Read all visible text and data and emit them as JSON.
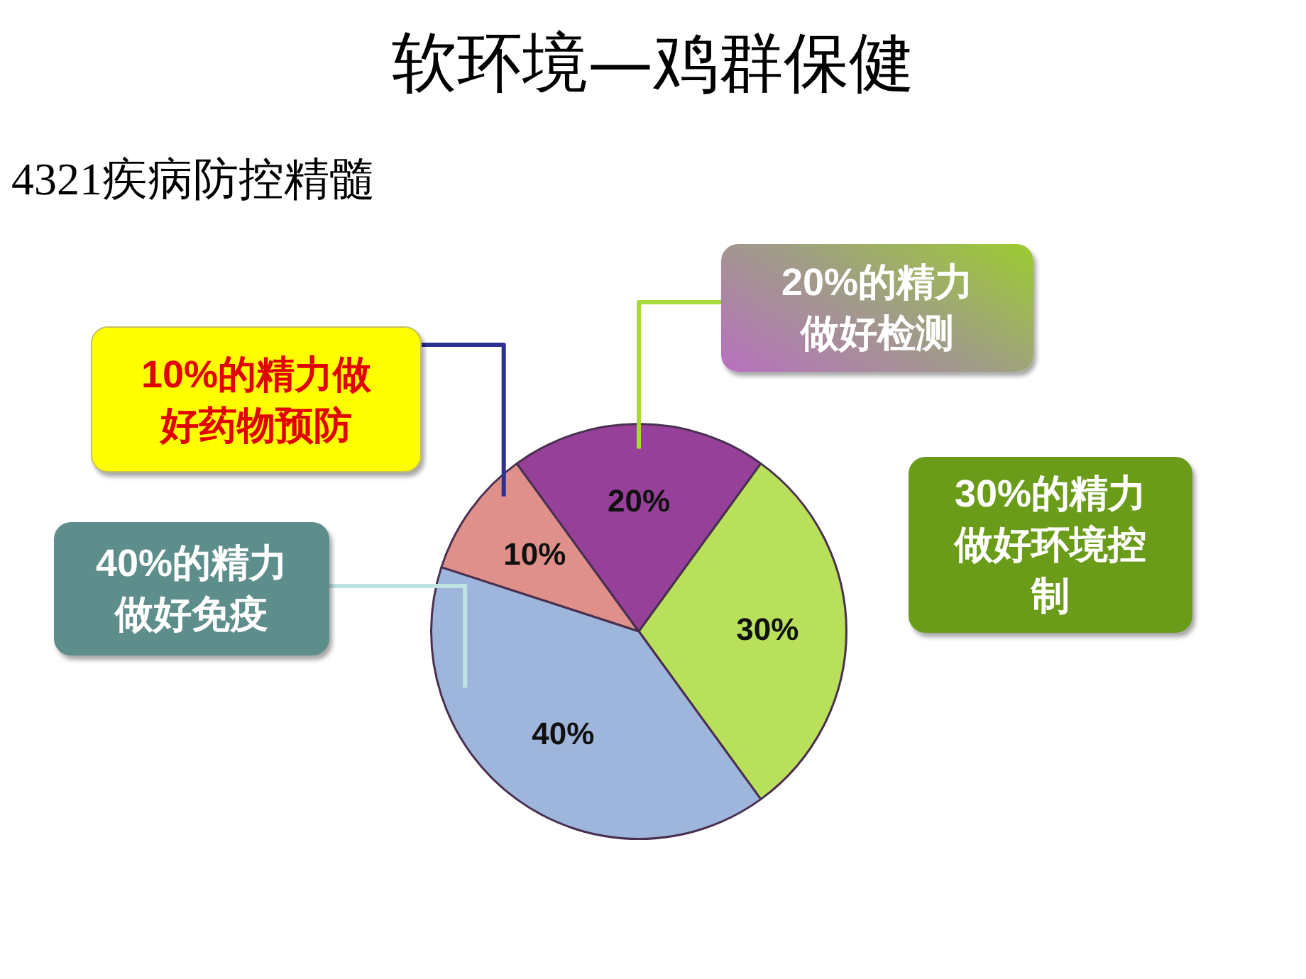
{
  "chart_data": {
    "type": "pie",
    "title": "软环境—鸡群保健",
    "subtitle": "4321疾病防控精髓",
    "categories": [
      "10%的精力做好药物预防",
      "20%的精力做好检测",
      "30%的精力做好环境控制",
      "40%的精力做好免疫"
    ],
    "values": [
      10,
      20,
      30,
      40
    ],
    "colors": [
      "#e0908a",
      "#96409a",
      "#b8e05a",
      "#9fb6dc"
    ],
    "value_labels": [
      "10%",
      "20%",
      "30%",
      "40%"
    ]
  }
}
